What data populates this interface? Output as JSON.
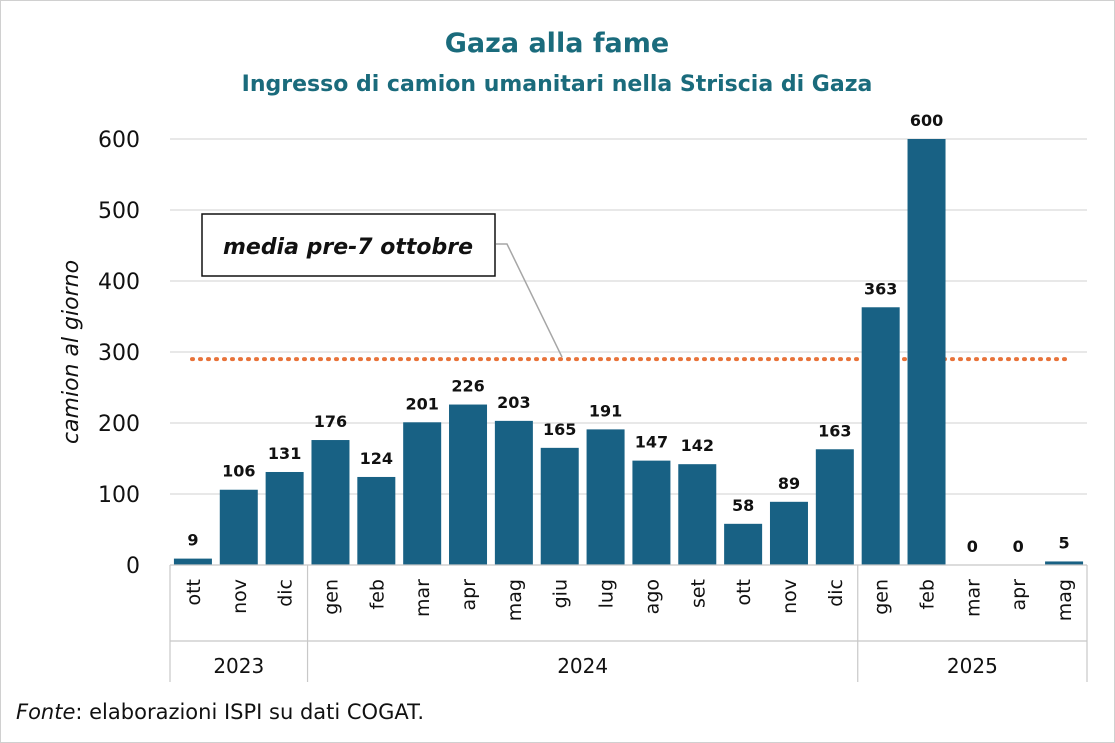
{
  "chart_data": {
    "type": "bar",
    "title": "Gaza alla fame",
    "subtitle": "Ingresso di camion umanitari nella Striscia di Gaza",
    "ylabel": "camion al giorno",
    "ylim": [
      0,
      600
    ],
    "yticks": [
      0,
      100,
      200,
      300,
      400,
      500,
      600
    ],
    "categories": [
      "ott",
      "nov",
      "dic",
      "gen",
      "feb",
      "mar",
      "apr",
      "mag",
      "giu",
      "lug",
      "ago",
      "set",
      "ott",
      "nov",
      "dic",
      "gen",
      "feb",
      "mar",
      "apr",
      "mag"
    ],
    "values": [
      9,
      106,
      131,
      176,
      124,
      201,
      226,
      203,
      165,
      191,
      147,
      142,
      58,
      89,
      163,
      363,
      600,
      0,
      0,
      5
    ],
    "year_groups": [
      {
        "label": "2023",
        "start": 0,
        "end": 2
      },
      {
        "label": "2024",
        "start": 3,
        "end": 14
      },
      {
        "label": "2025",
        "start": 15,
        "end": 19
      }
    ],
    "reference_line": {
      "label": "media pre-7 ottobre",
      "value": 290
    },
    "grid": true,
    "legend": "none",
    "colors": {
      "bar": "#186184",
      "reference": "#e8733a",
      "title": "#1a6b7c"
    }
  },
  "source": {
    "prefix": "Fonte",
    "text": ": elaborazioni ISPI su dati COGAT."
  }
}
